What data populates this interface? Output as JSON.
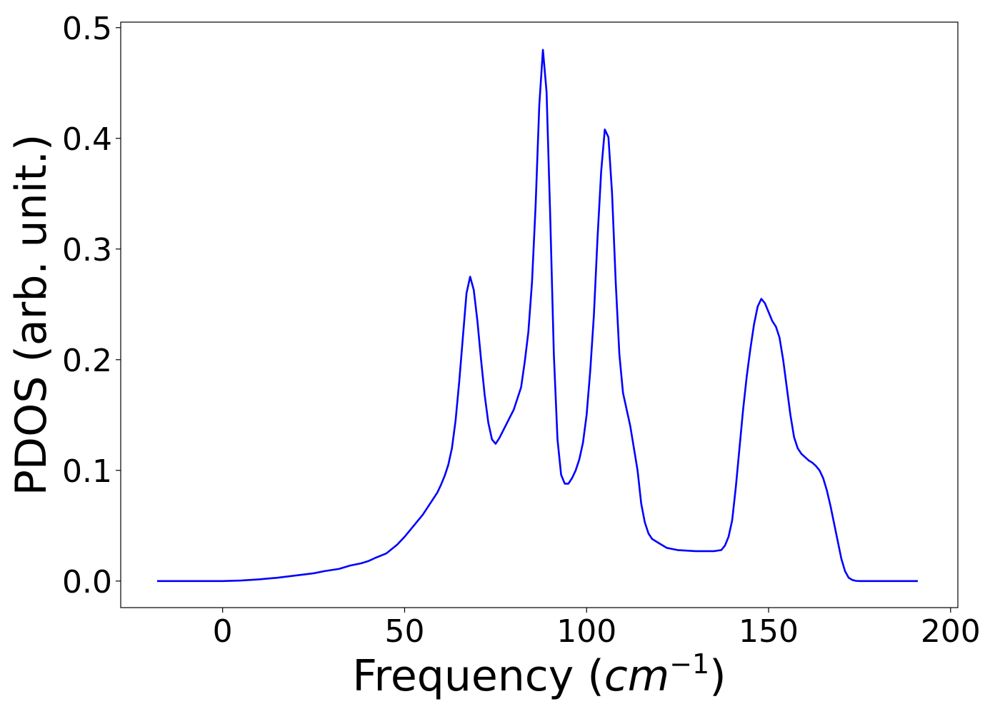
{
  "chart_data": {
    "type": "line",
    "title": "",
    "xlabel": "Frequency (",
    "xlabel_unit_base": "cm",
    "xlabel_unit_exp": "−1",
    "xlabel_close": ")",
    "ylabel": "PDOS (arb. unit.)",
    "xlim": [
      -28,
      202
    ],
    "ylim": [
      -0.024,
      0.505
    ],
    "xticks": [
      0,
      50,
      100,
      150,
      200
    ],
    "xtick_labels": [
      "0",
      "50",
      "100",
      "150",
      "200"
    ],
    "yticks": [
      0.0,
      0.1,
      0.2,
      0.3,
      0.4,
      0.5
    ],
    "ytick_labels": [
      "0.0",
      "0.1",
      "0.2",
      "0.3",
      "0.4",
      "0.5"
    ],
    "grid": false,
    "line_color": "#0000ff",
    "series": [
      {
        "x": [
          -18,
          -10,
          0,
          5,
          10,
          15,
          20,
          25,
          28,
          32,
          35,
          38,
          40,
          42,
          45,
          48,
          50,
          52,
          55,
          57,
          59,
          60,
          61,
          62,
          63,
          64,
          65,
          66,
          67,
          68,
          69,
          70,
          71,
          72,
          73,
          74,
          75,
          76,
          78,
          80,
          82,
          83,
          84,
          85,
          86,
          87,
          88,
          89,
          90,
          91,
          92,
          93,
          94,
          95,
          96,
          97,
          98,
          99,
          100,
          101,
          102,
          103,
          104,
          105,
          106,
          107,
          108,
          109,
          110,
          112,
          114,
          115,
          116,
          117,
          118,
          120,
          122,
          125,
          130,
          135,
          137,
          138,
          139,
          140,
          141,
          142,
          143,
          144,
          145,
          146,
          147,
          148,
          149,
          150,
          151,
          152,
          153,
          154,
          155,
          156,
          157,
          158,
          159,
          160,
          161,
          162,
          163,
          164,
          165,
          166,
          167,
          168,
          169,
          170,
          171,
          172,
          173,
          174,
          175,
          176,
          177,
          178,
          180,
          185,
          191
        ],
        "y": [
          0.0,
          0.0,
          0.0,
          0.0005,
          0.0015,
          0.003,
          0.005,
          0.007,
          0.009,
          0.011,
          0.014,
          0.016,
          0.018,
          0.021,
          0.025,
          0.033,
          0.04,
          0.048,
          0.06,
          0.07,
          0.08,
          0.087,
          0.095,
          0.105,
          0.12,
          0.145,
          0.18,
          0.22,
          0.26,
          0.275,
          0.263,
          0.235,
          0.2,
          0.168,
          0.143,
          0.128,
          0.124,
          0.129,
          0.142,
          0.155,
          0.175,
          0.198,
          0.225,
          0.27,
          0.34,
          0.43,
          0.48,
          0.442,
          0.33,
          0.205,
          0.128,
          0.096,
          0.088,
          0.088,
          0.093,
          0.1,
          0.11,
          0.125,
          0.15,
          0.19,
          0.24,
          0.31,
          0.37,
          0.408,
          0.401,
          0.35,
          0.27,
          0.205,
          0.17,
          0.14,
          0.1,
          0.07,
          0.053,
          0.043,
          0.038,
          0.034,
          0.03,
          0.028,
          0.027,
          0.027,
          0.028,
          0.032,
          0.04,
          0.055,
          0.085,
          0.12,
          0.155,
          0.185,
          0.21,
          0.232,
          0.248,
          0.255,
          0.251,
          0.243,
          0.235,
          0.23,
          0.22,
          0.2,
          0.175,
          0.15,
          0.13,
          0.12,
          0.115,
          0.112,
          0.109,
          0.107,
          0.104,
          0.1,
          0.093,
          0.082,
          0.068,
          0.052,
          0.036,
          0.02,
          0.009,
          0.003,
          0.001,
          0.0002,
          0.0,
          0.0,
          0.0,
          0.0,
          0.0,
          0.0,
          0.0
        ]
      }
    ]
  }
}
